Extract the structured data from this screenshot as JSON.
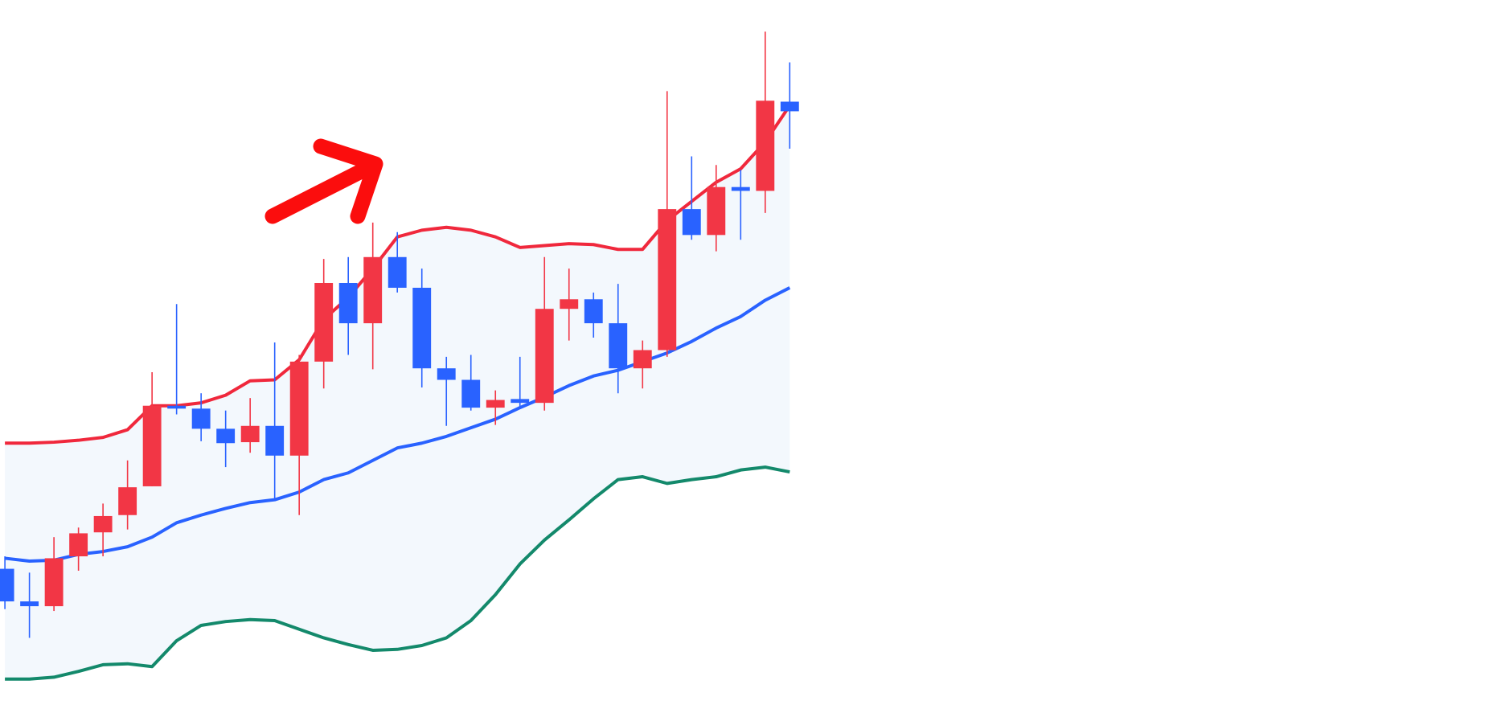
{
  "chart_data": {
    "type": "candlestick",
    "x": [
      0,
      1,
      2,
      3,
      4,
      5,
      6,
      7,
      8,
      9,
      10,
      11,
      12,
      13,
      14,
      15,
      16,
      17,
      18,
      19,
      20,
      21,
      22,
      23,
      24,
      25,
      26,
      27,
      28,
      29,
      30,
      31,
      32
    ],
    "open": [
      142,
      108,
      103,
      155,
      180,
      198,
      228,
      312,
      309,
      288,
      274,
      291,
      260,
      358,
      440,
      398,
      467,
      435,
      351,
      339,
      310,
      319,
      315,
      413,
      423,
      398,
      351,
      370,
      517,
      490,
      540,
      536,
      629
    ],
    "high": [
      155,
      138,
      175,
      185,
      210,
      255,
      347,
      418,
      325,
      307,
      320,
      378,
      365,
      465,
      467,
      503,
      493,
      455,
      363,
      365,
      328,
      363,
      467,
      455,
      430,
      439,
      380,
      640,
      572,
      563,
      558,
      702,
      670
    ],
    "low": [
      100,
      70,
      98,
      140,
      155,
      183,
      228,
      303,
      275,
      248,
      263,
      215,
      198,
      330,
      365,
      350,
      430,
      331,
      291,
      307,
      292,
      310,
      307,
      380,
      383,
      325,
      330,
      363,
      485,
      473,
      485,
      513,
      580
    ],
    "close": [
      108,
      103,
      153,
      179,
      197,
      227,
      312,
      309,
      288,
      273,
      291,
      260,
      358,
      440,
      398,
      467,
      435,
      351,
      339,
      310,
      318,
      315,
      413,
      423,
      398,
      351,
      370,
      517,
      490,
      540,
      536,
      630,
      619
    ],
    "up_color": "#f23645",
    "down_color": "#2962ff",
    "series": [
      {
        "color": "#f0283c",
        "values": [
          273,
          273,
          274,
          276,
          279,
          287,
          312,
          312,
          315,
          323,
          338,
          339,
          360,
          402,
          425,
          455,
          488,
          495,
          498,
          495,
          488,
          477,
          479,
          481,
          480,
          475,
          475,
          505,
          525,
          545,
          559,
          587,
          625
        ]
      },
      {
        "color": "#2962ff",
        "values": [
          153,
          150,
          151,
          157,
          160,
          165,
          175,
          190,
          198,
          205,
          211,
          214,
          222,
          235,
          242,
          255,
          268,
          273,
          280,
          289,
          298,
          310,
          321,
          333,
          343,
          349,
          358,
          367,
          379,
          393,
          405,
          422,
          435
        ]
      },
      {
        "color": "#13896b",
        "values": [
          27,
          27,
          29,
          35,
          42,
          43,
          40,
          67,
          83,
          87,
          89,
          88,
          79,
          70,
          63,
          57,
          58,
          62,
          70,
          88,
          115,
          147,
          172,
          193,
          215,
          235,
          238,
          231,
          235,
          238,
          245,
          248,
          243
        ]
      }
    ],
    "band_fill": "#f3f8fd",
    "xlim": [
      -0.2,
      61
    ],
    "ylim": [
      0,
      735
    ]
  }
}
